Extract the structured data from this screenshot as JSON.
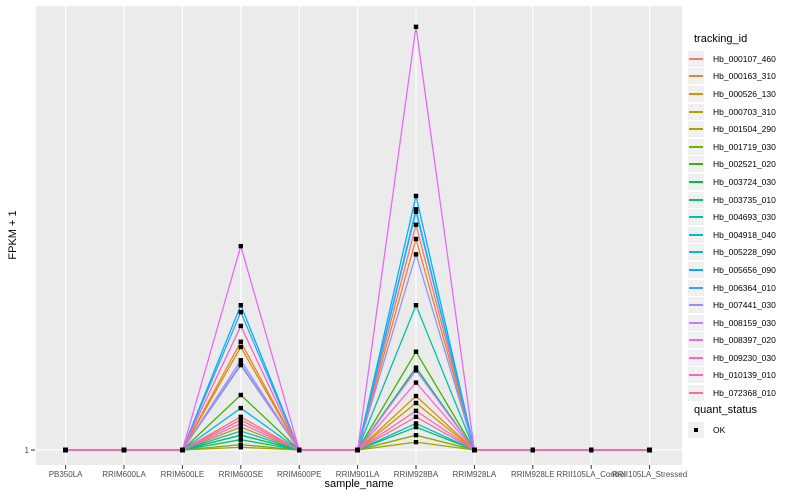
{
  "chart_data": {
    "type": "line",
    "title": "",
    "xlabel": "sample_name",
    "ylabel": "FPKM + 1",
    "y_scale": "log10",
    "y_ticks": [
      {
        "value": 1,
        "label": "1"
      }
    ],
    "y_range_approx": [
      1,
      2600
    ],
    "grid": "white major gridlines on grey panel; vertical line per category, horizontal line at y=1",
    "legend_position": "right",
    "point_shape": "filled-square",
    "point_color": "#000000",
    "categories": [
      "PB350LA",
      "RRIM600LA",
      "RRIM600LE",
      "RRIM600SE",
      "RRIM600PE",
      "RRIM901LA",
      "RRIM928BA",
      "RRIM928LA",
      "RRIM928LE",
      "RRII105LA_Control",
      "RRII105LA_Stressed"
    ],
    "series": [
      {
        "name": "Hb_000107_460",
        "color": "#F8766D",
        "values": [
          1,
          1,
          1,
          1.8,
          1,
          1,
          54,
          1,
          1,
          1,
          1
        ]
      },
      {
        "name": "Hb_000163_310",
        "color": "#EA8331",
        "values": [
          1,
          1,
          1,
          6.8,
          1,
          1,
          42,
          1,
          1,
          1,
          1
        ]
      },
      {
        "name": "Hb_000526_130",
        "color": "#D89000",
        "values": [
          1,
          1,
          1,
          6.2,
          1,
          1,
          2.6,
          1,
          1,
          1,
          1
        ]
      },
      {
        "name": "Hb_000703_310",
        "color": "#C09B00",
        "values": [
          1,
          1,
          1,
          1.5,
          1,
          1,
          2.3,
          1,
          1,
          1,
          1
        ]
      },
      {
        "name": "Hb_001504_290",
        "color": "#A3A500",
        "values": [
          1,
          1,
          1,
          1.05,
          1,
          1,
          1.15,
          1,
          1,
          1,
          1
        ]
      },
      {
        "name": "Hb_001719_030",
        "color": "#7CAE00",
        "values": [
          1,
          1,
          1,
          1.1,
          1,
          1,
          1.3,
          1,
          1,
          1,
          1
        ]
      },
      {
        "name": "Hb_002521_020",
        "color": "#39B600",
        "values": [
          1,
          1,
          1,
          2.65,
          1,
          1,
          5.7,
          1,
          1,
          1,
          1
        ]
      },
      {
        "name": "Hb_003724_030",
        "color": "#00BB4E",
        "values": [
          1,
          1,
          1,
          1.3,
          1,
          1,
          4.3,
          1,
          1,
          1,
          1
        ]
      },
      {
        "name": "Hb_003735_010",
        "color": "#00BF7D",
        "values": [
          1,
          1,
          1,
          1.2,
          1,
          1,
          1.5,
          1,
          1,
          1,
          1
        ]
      },
      {
        "name": "Hb_004693_030",
        "color": "#00C1A3",
        "values": [
          1,
          1,
          1,
          4.5,
          1,
          1,
          13,
          1,
          1,
          1,
          1
        ]
      },
      {
        "name": "Hb_004918_040",
        "color": "#00BFC4",
        "values": [
          1,
          1,
          1,
          1.4,
          1,
          1,
          1.6,
          1,
          1,
          1,
          1
        ]
      },
      {
        "name": "Hb_005228_090",
        "color": "#00BAE0",
        "values": [
          1,
          1,
          1,
          2.1,
          1,
          1,
          68,
          1,
          1,
          1,
          1
        ]
      },
      {
        "name": "Hb_005656_090",
        "color": "#00B0F6",
        "values": [
          1,
          1,
          1,
          13,
          1,
          1,
          90,
          1,
          1,
          1,
          1
        ]
      },
      {
        "name": "Hb_006364_010",
        "color": "#35A2FF",
        "values": [
          1,
          1,
          1,
          11.5,
          1,
          1,
          71,
          1,
          1,
          1,
          1
        ]
      },
      {
        "name": "Hb_007441_030",
        "color": "#9590FF",
        "values": [
          1,
          1,
          1,
          4.9,
          1,
          1,
          32,
          1,
          1,
          1,
          1
        ]
      },
      {
        "name": "Hb_008159_030",
        "color": "#C77CFF",
        "values": [
          1,
          1,
          1,
          4.6,
          1,
          1,
          4.1,
          1,
          1,
          1,
          1
        ]
      },
      {
        "name": "Hb_008397_020",
        "color": "#E76BF3",
        "values": [
          1,
          1,
          1,
          37,
          1,
          1,
          1800,
          1,
          1,
          1,
          1
        ]
      },
      {
        "name": "Hb_009230_030",
        "color": "#FA62DB",
        "values": [
          1,
          1,
          1,
          1.6,
          1,
          1,
          3.3,
          1,
          1,
          1,
          1
        ]
      },
      {
        "name": "Hb_010139_010",
        "color": "#FF62BC",
        "values": [
          1,
          1,
          1,
          9,
          1,
          1,
          2,
          1,
          1,
          1,
          1
        ]
      },
      {
        "name": "Hb_072368_010",
        "color": "#FF6A98",
        "values": [
          1,
          1,
          1,
          1.7,
          1,
          1,
          1.8,
          1,
          1,
          1,
          1
        ]
      }
    ],
    "legend": {
      "color_title": "tracking_id",
      "shape_title": "quant_status",
      "shape_items": [
        {
          "label": "OK",
          "shape": "filled-square",
          "color": "#000000"
        }
      ]
    },
    "style": {
      "panel_bg": "#EBEBEB",
      "grid_color": "#FFFFFF",
      "tick_color": "#333333",
      "tick_text_color": "#4D4D4D",
      "key_bg": "#F0F0F0"
    }
  }
}
